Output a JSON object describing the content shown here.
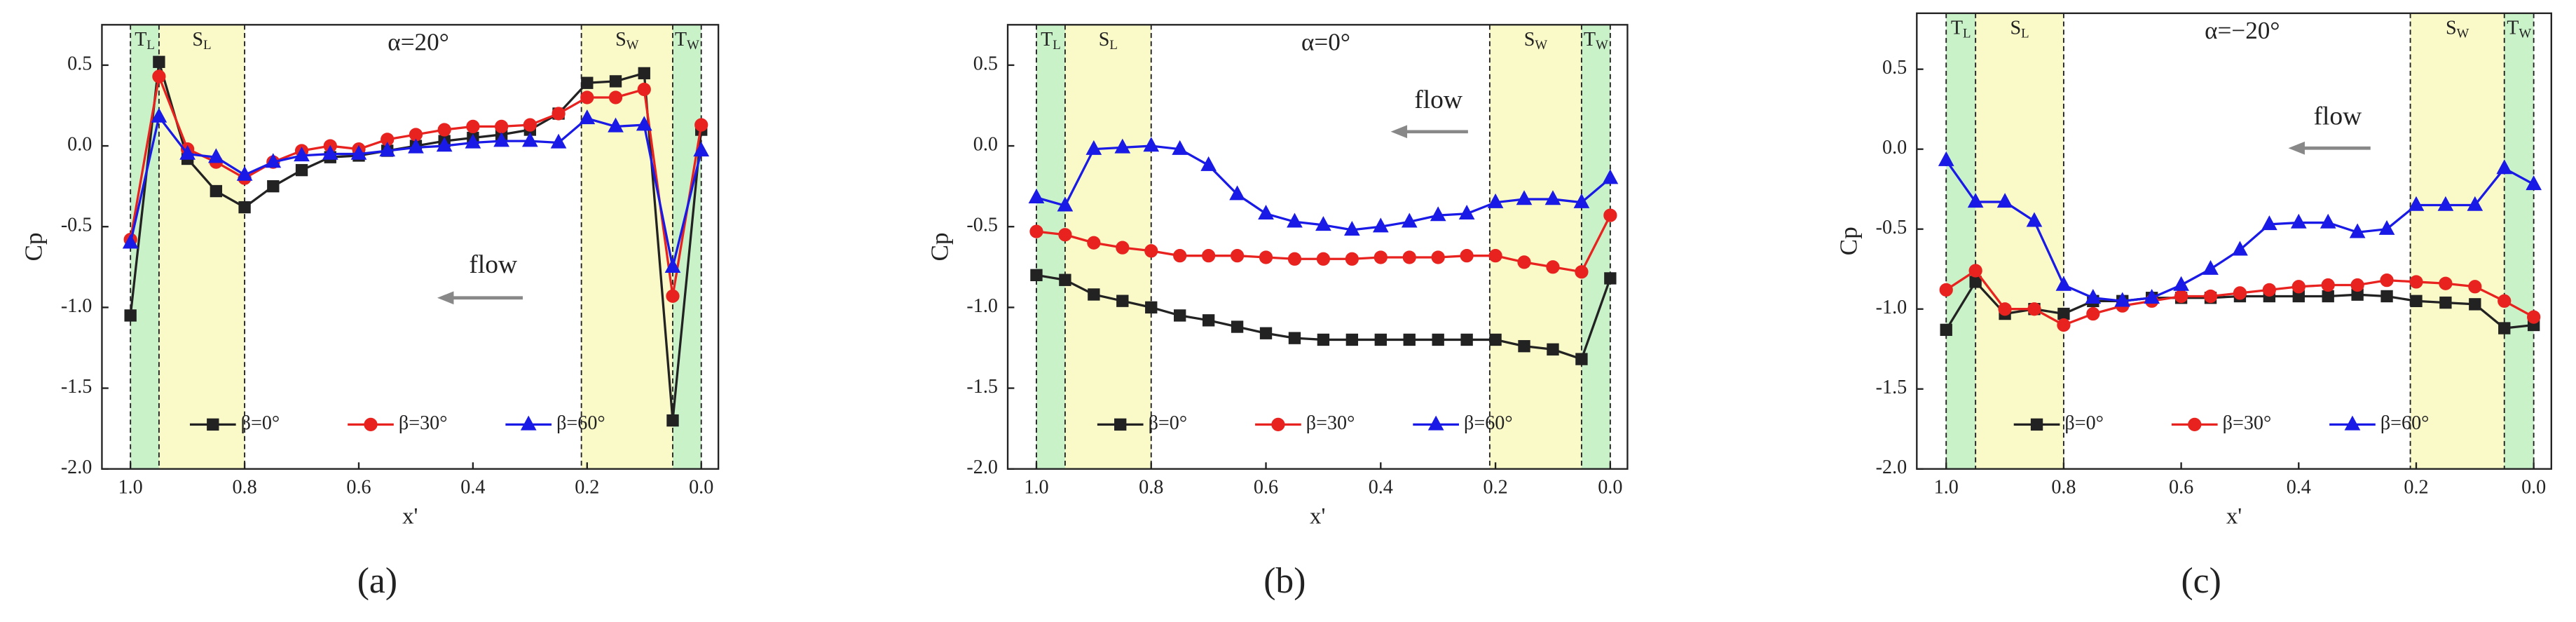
{
  "chart_data": [
    {
      "type": "line",
      "title": "α=20°",
      "panel_label": "(a)",
      "x_label": "x'",
      "y_label": "Cp",
      "annotation": "flow",
      "xlim": [
        1.05,
        -0.03
      ],
      "ylim": [
        -2.0,
        0.75
      ],
      "xticks": [
        {
          "value": 1,
          "label": "1.0"
        },
        0.8,
        0.6,
        0.4,
        0.2,
        {
          "value": 0,
          "label": "0.0"
        }
      ],
      "yticks": [
        0.5,
        {
          "value": 0,
          "label": "0.0"
        },
        -0.5,
        {
          "value": -1,
          "label": "-1.0"
        },
        -1.5,
        {
          "value": -2,
          "label": "-2.0"
        }
      ],
      "legend": "bottom",
      "regions": [
        {
          "label": "T",
          "sub": "L",
          "from": 1.0,
          "to": 0.95,
          "color": "#c9f2c9"
        },
        {
          "label": "S",
          "sub": "L",
          "from": 0.95,
          "to": 0.8,
          "color": "#fafac8"
        },
        {
          "label": "S",
          "sub": "W",
          "from": 0.21,
          "to": 0.05,
          "color": "#fafac8"
        },
        {
          "label": "T",
          "sub": "W",
          "from": 0.05,
          "to": 0.0,
          "color": "#c9f2c9"
        }
      ],
      "x": [
        1.0,
        0.95,
        0.9,
        0.85,
        0.8,
        0.75,
        0.7,
        0.65,
        0.6,
        0.55,
        0.5,
        0.45,
        0.4,
        0.35,
        0.3,
        0.25,
        0.2,
        0.15,
        0.1,
        0.05,
        0.0
      ],
      "series": [
        {
          "name": "β=0°",
          "color": "#222222",
          "marker": "square",
          "values": [
            -1.05,
            0.52,
            -0.08,
            -0.28,
            -0.38,
            -0.25,
            -0.15,
            -0.07,
            -0.06,
            -0.03,
            0.0,
            0.03,
            0.05,
            0.07,
            0.1,
            0.2,
            0.39,
            0.4,
            0.45,
            -1.7,
            0.1
          ]
        },
        {
          "name": "β=30°",
          "color": "#e8231f",
          "marker": "circle",
          "values": [
            -0.58,
            0.43,
            -0.02,
            -0.1,
            -0.2,
            -0.1,
            -0.03,
            0.0,
            -0.02,
            0.04,
            0.07,
            0.1,
            0.12,
            0.12,
            0.13,
            0.2,
            0.3,
            0.3,
            0.35,
            -0.93,
            0.13
          ]
        },
        {
          "name": "β=60°",
          "color": "#1a1ae6",
          "marker": "triangle",
          "values": [
            -0.6,
            0.18,
            -0.05,
            -0.07,
            -0.18,
            -0.1,
            -0.06,
            -0.05,
            -0.05,
            -0.03,
            -0.01,
            0.0,
            0.02,
            0.03,
            0.03,
            0.02,
            0.17,
            0.12,
            0.13,
            -0.75,
            -0.03
          ]
        }
      ]
    },
    {
      "type": "line",
      "title": "α=0°",
      "panel_label": "(b)",
      "x_label": "x'",
      "y_label": "Cp",
      "annotation": "flow",
      "xlim": [
        1.05,
        -0.03
      ],
      "ylim": [
        -2.0,
        0.75
      ],
      "xticks": [
        {
          "value": 1,
          "label": "1.0"
        },
        0.8,
        0.6,
        0.4,
        0.2,
        {
          "value": 0,
          "label": "0.0"
        }
      ],
      "yticks": [
        0.5,
        {
          "value": 0,
          "label": "0.0"
        },
        -0.5,
        {
          "value": -1,
          "label": "-1.0"
        },
        -1.5,
        {
          "value": -2,
          "label": "-2.0"
        }
      ],
      "legend": "bottom",
      "regions": [
        {
          "label": "T",
          "sub": "L",
          "from": 1.0,
          "to": 0.95,
          "color": "#c9f2c9"
        },
        {
          "label": "S",
          "sub": "L",
          "from": 0.95,
          "to": 0.8,
          "color": "#fafac8"
        },
        {
          "label": "S",
          "sub": "W",
          "from": 0.21,
          "to": 0.05,
          "color": "#fafac8"
        },
        {
          "label": "T",
          "sub": "W",
          "from": 0.05,
          "to": 0.0,
          "color": "#c9f2c9"
        }
      ],
      "x": [
        1.0,
        0.95,
        0.9,
        0.85,
        0.8,
        0.75,
        0.7,
        0.65,
        0.6,
        0.55,
        0.5,
        0.45,
        0.4,
        0.35,
        0.3,
        0.25,
        0.2,
        0.15,
        0.1,
        0.05,
        0.0
      ],
      "series": [
        {
          "name": "β=0°",
          "color": "#222222",
          "marker": "square",
          "values": [
            -0.8,
            -0.83,
            -0.92,
            -0.96,
            -1.0,
            -1.05,
            -1.08,
            -1.12,
            -1.16,
            -1.19,
            -1.2,
            -1.2,
            -1.2,
            -1.2,
            -1.2,
            -1.2,
            -1.2,
            -1.24,
            -1.26,
            -1.32,
            -0.82
          ]
        },
        {
          "name": "β=30°",
          "color": "#e8231f",
          "marker": "circle",
          "values": [
            -0.53,
            -0.55,
            -0.6,
            -0.63,
            -0.65,
            -0.68,
            -0.68,
            -0.68,
            -0.69,
            -0.7,
            -0.7,
            -0.7,
            -0.69,
            -0.69,
            -0.69,
            -0.68,
            -0.68,
            -0.72,
            -0.75,
            -0.78,
            -0.43
          ]
        },
        {
          "name": "β=60°",
          "color": "#1a1ae6",
          "marker": "triangle",
          "values": [
            -0.32,
            -0.37,
            -0.02,
            -0.01,
            0.0,
            -0.02,
            -0.12,
            -0.3,
            -0.42,
            -0.47,
            -0.49,
            -0.52,
            -0.5,
            -0.47,
            -0.43,
            -0.42,
            -0.35,
            -0.33,
            -0.33,
            -0.35,
            -0.2
          ]
        }
      ]
    },
    {
      "type": "line",
      "title": "α=−20°",
      "panel_label": "(c)",
      "x_label": "x'",
      "y_label": "Cp",
      "annotation": "flow",
      "xlim": [
        1.05,
        -0.03
      ],
      "ylim": [
        -2.0,
        0.85
      ],
      "xticks": [
        {
          "value": 1,
          "label": "1.0"
        },
        0.8,
        0.6,
        0.4,
        0.2,
        {
          "value": 0,
          "label": "0.0"
        }
      ],
      "yticks": [
        0.5,
        {
          "value": 0,
          "label": "0.0"
        },
        -0.5,
        {
          "value": -1,
          "label": "-1.0"
        },
        -1.5,
        {
          "value": -2,
          "label": "-2.0"
        }
      ],
      "legend": "bottom",
      "regions": [
        {
          "label": "T",
          "sub": "L",
          "from": 1.0,
          "to": 0.95,
          "color": "#c9f2c9"
        },
        {
          "label": "S",
          "sub": "L",
          "from": 0.95,
          "to": 0.8,
          "color": "#fafac8"
        },
        {
          "label": "S",
          "sub": "W",
          "from": 0.21,
          "to": 0.05,
          "color": "#fafac8"
        },
        {
          "label": "T",
          "sub": "W",
          "from": 0.05,
          "to": 0.0,
          "color": "#c9f2c9"
        }
      ],
      "x": [
        1.0,
        0.95,
        0.9,
        0.85,
        0.8,
        0.75,
        0.7,
        0.65,
        0.6,
        0.55,
        0.5,
        0.45,
        0.4,
        0.35,
        0.3,
        0.25,
        0.2,
        0.15,
        0.1,
        0.05,
        0.0
      ],
      "series": [
        {
          "name": "β=0°",
          "color": "#222222",
          "marker": "square",
          "values": [
            -1.13,
            -0.83,
            -1.03,
            -1.0,
            -1.03,
            -0.95,
            -0.95,
            -0.93,
            -0.93,
            -0.93,
            -0.92,
            -0.92,
            -0.92,
            -0.92,
            -0.91,
            -0.92,
            -0.95,
            -0.96,
            -0.97,
            -1.12,
            -1.1
          ]
        },
        {
          "name": "β=30°",
          "color": "#e8231f",
          "marker": "circle",
          "values": [
            -0.88,
            -0.76,
            -1.0,
            -1.0,
            -1.1,
            -1.03,
            -0.98,
            -0.95,
            -0.92,
            -0.92,
            -0.9,
            -0.88,
            -0.86,
            -0.85,
            -0.85,
            -0.82,
            -0.83,
            -0.84,
            -0.86,
            -0.95,
            -1.05
          ]
        },
        {
          "name": "β=60°",
          "color": "#1a1ae6",
          "marker": "triangle",
          "values": [
            -0.07,
            -0.33,
            -0.33,
            -0.45,
            -0.85,
            -0.93,
            -0.95,
            -0.93,
            -0.85,
            -0.75,
            -0.63,
            -0.47,
            -0.46,
            -0.46,
            -0.52,
            -0.5,
            -0.35,
            -0.35,
            -0.35,
            -0.12,
            -0.22
          ]
        }
      ]
    }
  ]
}
